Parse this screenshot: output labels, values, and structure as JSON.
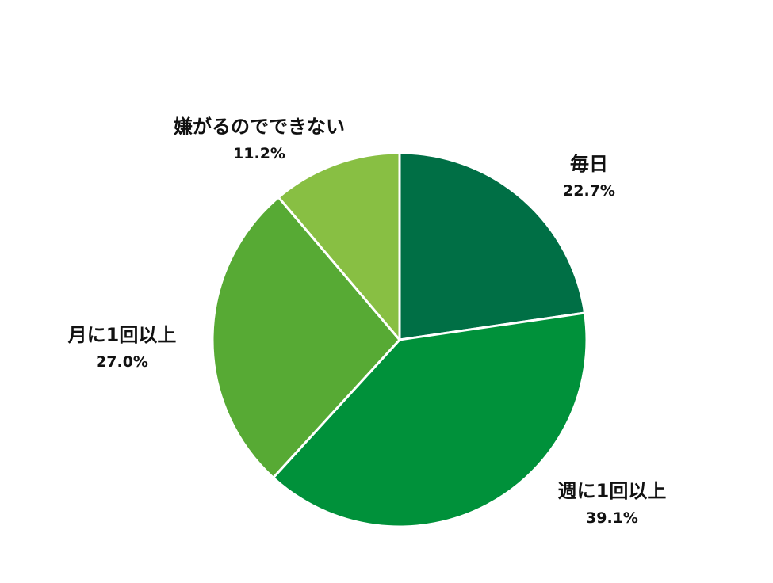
{
  "chart_data": {
    "type": "pie",
    "start_angle_deg": 0,
    "direction": "clockwise",
    "slices": [
      {
        "label": "毎日",
        "value": 22.7,
        "value_text": "22.7%",
        "color": "#006f45"
      },
      {
        "label": "週に1回以上",
        "value": 39.1,
        "value_text": "39.1%",
        "color": "#00913a"
      },
      {
        "label": "月に1回以上",
        "value": 27.0,
        "value_text": "27.0%",
        "color": "#57aa34"
      },
      {
        "label": "嫌がるのでできない",
        "value": 11.2,
        "value_text": "11.2%",
        "color": "#88bf43"
      }
    ],
    "slice_border_color": "#ffffff",
    "legend": "none"
  }
}
